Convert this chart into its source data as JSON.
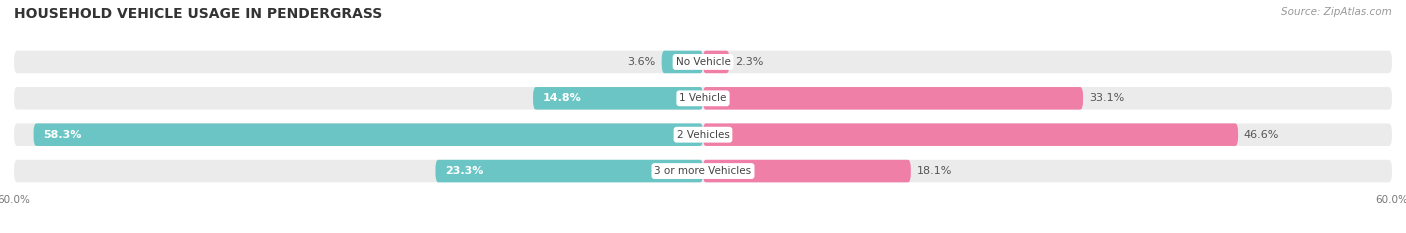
{
  "title": "HOUSEHOLD VEHICLE USAGE IN PENDERGRASS",
  "source": "Source: ZipAtlas.com",
  "categories": [
    "No Vehicle",
    "1 Vehicle",
    "2 Vehicles",
    "3 or more Vehicles"
  ],
  "owner_values": [
    3.6,
    14.8,
    58.3,
    23.3
  ],
  "renter_values": [
    2.3,
    33.1,
    46.6,
    18.1
  ],
  "owner_color": "#6cc5c5",
  "renter_color": "#f07fa8",
  "bar_bg_color": "#ebebeb",
  "axis_max": 60.0,
  "x_tick_label_left": "60.0%",
  "x_tick_label_right": "60.0%",
  "title_fontsize": 10,
  "source_fontsize": 7.5,
  "bar_label_fontsize": 8,
  "category_fontsize": 7.5,
  "legend_fontsize": 8,
  "background_color": "#ffffff",
  "bar_height": 0.62,
  "bar_gap": 0.15,
  "label_color_dark": "#555555",
  "label_color_white": "#ffffff"
}
